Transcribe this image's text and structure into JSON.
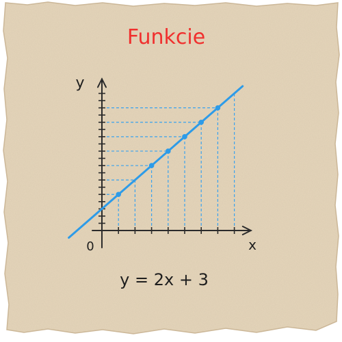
{
  "title": "Funkcie",
  "colors": {
    "paper": "#e6d6bb",
    "paper_edge": "#cdb898",
    "title": "#f0302e",
    "line": "#2d9be8",
    "guides": "#3aa2ee",
    "axes": "#2b2b2b",
    "ink": "#1e1e1e"
  },
  "chart_data": {
    "type": "line",
    "title": "Funkcie",
    "xlabel": "x",
    "ylabel": "y",
    "origin_label": "0",
    "equation": "y = 2x + 3",
    "slope": 2,
    "intercept": 3,
    "xlim": [
      -2,
      9
    ],
    "ylim": [
      -1,
      21
    ],
    "grid": false,
    "x_ticks": [
      1,
      2,
      3,
      4,
      5,
      6,
      7,
      8
    ],
    "y_ticks": [
      1,
      2,
      3,
      4,
      5,
      6,
      7,
      8,
      9,
      10,
      11,
      12,
      13,
      14,
      15,
      16,
      17,
      18,
      19
    ],
    "line_x": [
      -2.0,
      8.5
    ],
    "points": [
      {
        "x": 1,
        "y": 5
      },
      {
        "x": 3,
        "y": 9
      },
      {
        "x": 4,
        "y": 11
      },
      {
        "x": 5,
        "y": 13
      },
      {
        "x": 6,
        "y": 15
      },
      {
        "x": 7,
        "y": 17
      }
    ],
    "guide_x": [
      1,
      2,
      3,
      4,
      5,
      6,
      7,
      8
    ],
    "guide_y": [
      3,
      5,
      7,
      9,
      11,
      13,
      15,
      17
    ]
  }
}
